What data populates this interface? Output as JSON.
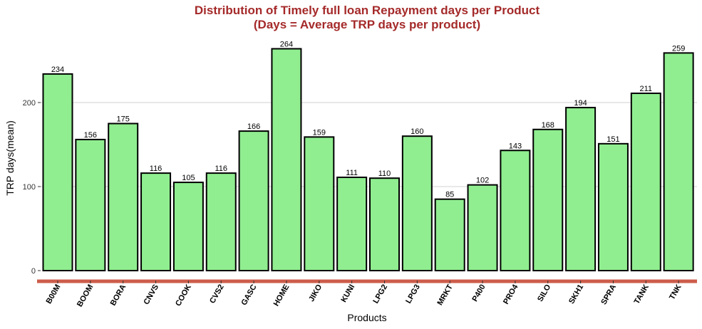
{
  "chart_data": {
    "type": "bar",
    "title": "Distribution of Timely full loan Repayment days per Product",
    "subtitle": "(Days = Average TRP days per product)",
    "xlabel": "Products",
    "ylabel": "TRP days(mean)",
    "categories": [
      "B00M",
      "BOOM",
      "BORA",
      "CNVS",
      "COOK",
      "CVS2",
      "GASC",
      "HOME",
      "JIKO",
      "KUNI",
      "LPG2",
      "LPG3",
      "MRKT",
      "P400",
      "PRO4",
      "SILO",
      "SKH1",
      "SPRA",
      "TANK",
      "TNK"
    ],
    "values": [
      234,
      156,
      175,
      116,
      105,
      116,
      166,
      264,
      159,
      111,
      110,
      160,
      85,
      102,
      143,
      168,
      194,
      151,
      211,
      259
    ],
    "data_labels": [
      "234",
      "156",
      "175",
      "116",
      "105",
      "116",
      "166",
      "264",
      "159",
      "111",
      "110",
      "160",
      "85",
      "102",
      "143",
      "168",
      "194",
      "151",
      "211",
      "259"
    ],
    "y_ticks": [
      0,
      100,
      200
    ],
    "y_tick_labels": [
      "0",
      "100",
      "200"
    ],
    "ylim": [
      0,
      275
    ],
    "grid": true,
    "legend": "none",
    "colors": {
      "bar_fill": "#90ee90",
      "bar_stroke": "#000000",
      "title": "#a52a2a",
      "axis_line": "#cd5c4a",
      "grid": "#d9d9d9"
    }
  }
}
